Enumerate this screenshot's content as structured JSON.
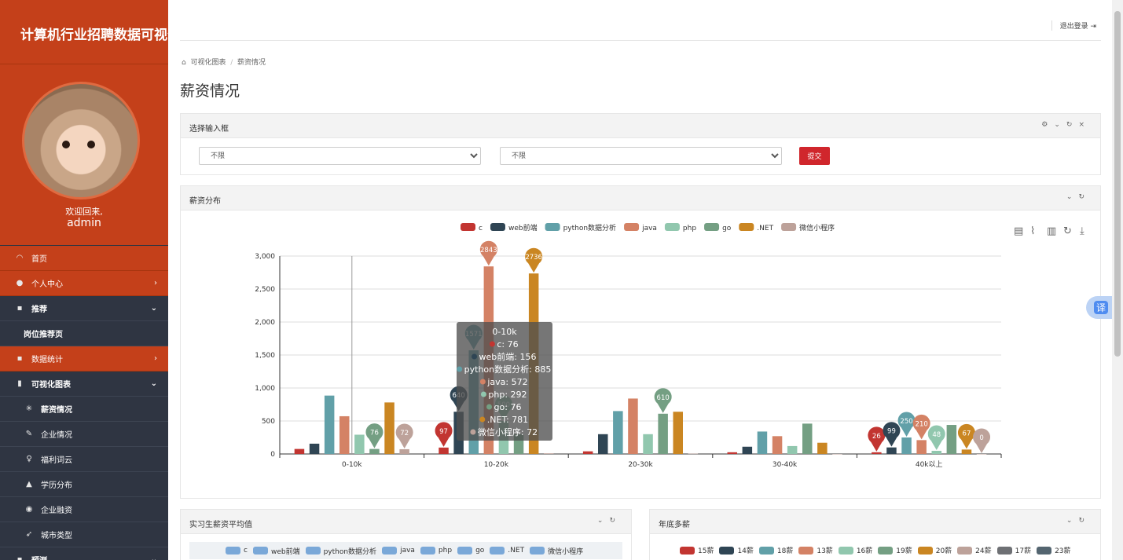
{
  "app_title": "计算机行业招聘数据可视化",
  "welcome": "欢迎回来,",
  "username": "admin",
  "nav": {
    "home": "首页",
    "profile_center": "个人中心",
    "recommend": "推荐",
    "job_recommend_page": "岗位推荐页",
    "data_stats": "数据统计",
    "viz_charts": "可视化图表",
    "salary": "薪资情况",
    "company": "企业情况",
    "welfare_cloud": "福利词云",
    "education": "学历分布",
    "financing": "企业融资",
    "city_type": "城市类型",
    "predict": "预测"
  },
  "topbar": {
    "logout": "退出登录"
  },
  "breadcrumb": {
    "parent": "可视化图表",
    "current": "薪资情况"
  },
  "page_title": "薪资情况",
  "filter_panel": {
    "title": "选择输入框",
    "select1": "不限",
    "select2": "不限",
    "submit": "提交"
  },
  "salary_panel": {
    "title": "薪资分布"
  },
  "intern_panel": {
    "title": "实习生薪资平均值"
  },
  "bonus_panel": {
    "title": "年底多薪"
  },
  "translate_label": "译",
  "colors": {
    "orange": "#c4401a",
    "dark": "#2f3542",
    "red_button": "#d0262c"
  },
  "chart_data": {
    "type": "bar",
    "categories": [
      "0-10k",
      "10-20k",
      "20-30k",
      "30-40k",
      "40k以上"
    ],
    "ylim": [
      0,
      3000
    ],
    "yticks": [
      "0",
      "500",
      "1,000",
      "1,500",
      "2,000",
      "2,500",
      "3,000"
    ],
    "series": [
      {
        "name": "c",
        "color": "#c23531",
        "values": [
          76,
          97,
          40,
          26,
          26
        ]
      },
      {
        "name": "web前端",
        "color": "#2f4554",
        "values": [
          156,
          640,
          300,
          110,
          99
        ]
      },
      {
        "name": "python数据分析",
        "color": "#61a0a8",
        "values": [
          885,
          1571,
          650,
          340,
          250
        ]
      },
      {
        "name": "java",
        "color": "#d48265",
        "values": [
          572,
          2843,
          840,
          270,
          210
        ]
      },
      {
        "name": "php",
        "color": "#91c7ae",
        "values": [
          292,
          500,
          300,
          120,
          48
        ]
      },
      {
        "name": "go",
        "color": "#749f83",
        "values": [
          76,
          300,
          610,
          460,
          440
        ]
      },
      {
        "name": ".NET",
        "color": "#ca8622",
        "values": [
          781,
          2736,
          640,
          170,
          67
        ]
      },
      {
        "name": "微信小程序",
        "color": "#bda29a",
        "values": [
          72,
          10,
          5,
          0,
          0
        ]
      }
    ],
    "tooltip": {
      "title": "0-10k",
      "lines": [
        "c: 76",
        "web前端: 156",
        "python数据分析: 885",
        "java: 572",
        "php: 292",
        "go: 76",
        ".NET: 781",
        "微信小程序: 72"
      ]
    }
  },
  "bonus_legend": [
    {
      "name": "15薪",
      "color": "#c23531"
    },
    {
      "name": "14薪",
      "color": "#2f4554"
    },
    {
      "name": "18薪",
      "color": "#61a0a8"
    },
    {
      "name": "13薪",
      "color": "#d48265"
    },
    {
      "name": "16薪",
      "color": "#91c7ae"
    },
    {
      "name": "19薪",
      "color": "#749f83"
    },
    {
      "name": "20薪",
      "color": "#ca8622"
    },
    {
      "name": "24薪",
      "color": "#bda29a"
    },
    {
      "name": "17薪",
      "color": "#6e7074"
    },
    {
      "name": "23薪",
      "color": "#546570"
    }
  ]
}
